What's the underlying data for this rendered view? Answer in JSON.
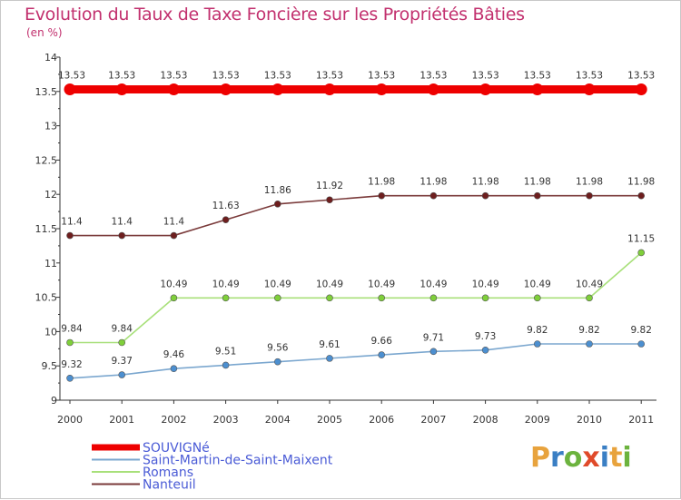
{
  "title": "Evolution du Taux de Taxe Foncière sur les Propriétés Bâties",
  "subtitle": "(en %)",
  "logo": {
    "letters": [
      "P",
      "r",
      "o",
      "x",
      "i",
      "t",
      "i"
    ],
    "colors": [
      "#e8a33d",
      "#3a7fc4",
      "#6cb33e",
      "#e04a2a",
      "#3a7fc4",
      "#e8a33d",
      "#6cb33e"
    ]
  },
  "chart_data": {
    "type": "line",
    "title": "Evolution du Taux de Taxe Foncière sur les Propriétés Bâties",
    "ylabel": "(en %)",
    "xlabel": "",
    "x": [
      "2000",
      "2001",
      "2002",
      "2003",
      "2004",
      "2005",
      "2006",
      "2007",
      "2008",
      "2009",
      "2010",
      "2011"
    ],
    "ylim": [
      9,
      14
    ],
    "yticks": [
      "9",
      "9.5",
      "10",
      "10.5",
      "11",
      "11.5",
      "12",
      "12.5",
      "13",
      "13.5",
      "14"
    ],
    "grid": false,
    "legend_position": "bottom-left",
    "series": [
      {
        "name": "SOUVIGNé",
        "color": "#ee0000",
        "marker_fill": "#ee0000",
        "width": "thick",
        "values": [
          13.53,
          13.53,
          13.53,
          13.53,
          13.53,
          13.53,
          13.53,
          13.53,
          13.53,
          13.53,
          13.53,
          13.53
        ],
        "labels": [
          "13.53",
          "13.53",
          "13.53",
          "13.53",
          "13.53",
          "13.53",
          "13.53",
          "13.53",
          "13.53",
          "13.53",
          "13.53",
          "13.53"
        ]
      },
      {
        "name": "Saint-Martin-de-Saint-Maixent",
        "color": "#7ba7cf",
        "marker_fill": "#4c8fd0",
        "width": "thin",
        "values": [
          9.32,
          9.37,
          9.46,
          9.51,
          9.56,
          9.61,
          9.66,
          9.71,
          9.73,
          9.82,
          9.82,
          9.82
        ],
        "labels": [
          "9.32",
          "9.37",
          "9.46",
          "9.51",
          "9.56",
          "9.61",
          "9.66",
          "9.71",
          "9.73",
          "9.82",
          "9.82",
          "9.82"
        ]
      },
      {
        "name": "Romans",
        "color": "#a8e07a",
        "marker_fill": "#7fcf3a",
        "width": "thin",
        "values": [
          9.84,
          9.84,
          10.49,
          10.49,
          10.49,
          10.49,
          10.49,
          10.49,
          10.49,
          10.49,
          10.49,
          11.15
        ],
        "labels": [
          "9.84",
          "9.84",
          "10.49",
          "10.49",
          "10.49",
          "10.49",
          "10.49",
          "10.49",
          "10.49",
          "10.49",
          "10.49",
          "11.15"
        ]
      },
      {
        "name": "Nanteuil",
        "color": "#7a3a3a",
        "marker_fill": "#6e1e1e",
        "width": "thin",
        "values": [
          11.4,
          11.4,
          11.4,
          11.63,
          11.86,
          11.92,
          11.98,
          11.98,
          11.98,
          11.98,
          11.98,
          11.98
        ],
        "labels": [
          "11.4",
          "11.4",
          "11.4",
          "11.63",
          "11.86",
          "11.92",
          "11.98",
          "11.98",
          "11.98",
          "11.98",
          "11.98",
          "11.98"
        ]
      }
    ]
  }
}
